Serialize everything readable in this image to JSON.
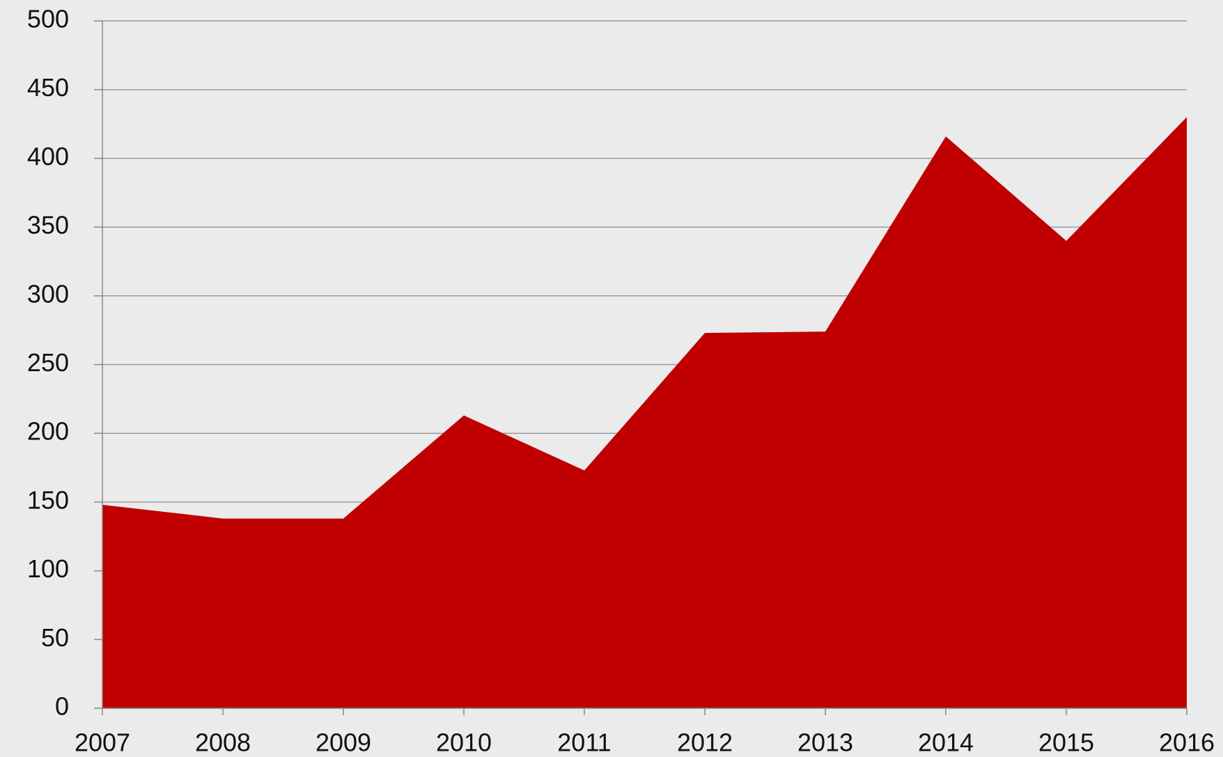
{
  "chart_data": {
    "type": "area",
    "categories": [
      "2007",
      "2008",
      "2009",
      "2010",
      "2011",
      "2012",
      "2013",
      "2014",
      "2015",
      "2016"
    ],
    "values": [
      148,
      138,
      138,
      213,
      173,
      273,
      274,
      416,
      340,
      430
    ],
    "color": "#c00000",
    "ylim": [
      0,
      500
    ],
    "yticks": [
      0,
      50,
      100,
      150,
      200,
      250,
      300,
      350,
      400,
      450,
      500
    ],
    "grid": true
  }
}
